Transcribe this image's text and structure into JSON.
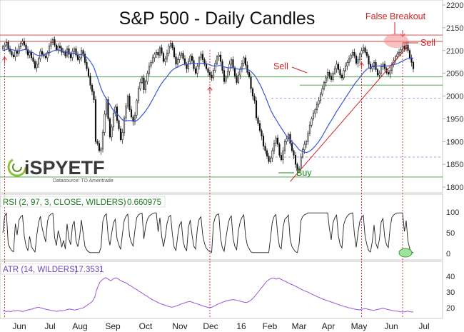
{
  "chart_data": {
    "type": "candlestick",
    "title": "S&P 500 - Daily Candles",
    "x_ticks": [
      "Jun",
      "Jul",
      "Aug",
      "Sep",
      "Oct",
      "Nov",
      "Dec",
      "16",
      "Feb",
      "Mar",
      "Apr",
      "May",
      "Jun",
      "Jul"
    ],
    "price_axis": {
      "range": [
        1800,
        2200
      ],
      "ticks": [
        1800,
        1850,
        1900,
        1950,
        2000,
        2050,
        2100,
        2150,
        2200
      ]
    },
    "price_series": [
      {
        "name": "close",
        "values": [
          2108,
          2112,
          2118,
          2104,
          2098,
          2090,
          2086,
          2100,
          2094,
          2108,
          2116,
          2120,
          2112,
          2102,
          2090,
          2096,
          2084,
          2076,
          2062,
          2070,
          2082,
          2098,
          2092,
          2088,
          2084,
          2096,
          2110,
          2118,
          2124,
          2112,
          2102,
          2110,
          2106,
          2096,
          2098,
          2088,
          2104,
          2092,
          2084,
          2098,
          2104,
          2090,
          2080,
          2084,
          2100,
          2092,
          2074,
          2060,
          2044,
          2024,
          2010,
          1992,
          1900,
          1896,
          1880,
          1884,
          1920,
          1960,
          1992,
          1950,
          1910,
          1932,
          1962,
          1976,
          1946,
          1928,
          1904,
          1920,
          1952,
          1978,
          2000,
          1970,
          1954,
          1944,
          1958,
          1990,
          2016,
          2030,
          2040,
          2014,
          2032,
          2050,
          2066,
          2074,
          2084,
          2092,
          2096,
          2090,
          2106,
          2094,
          2076,
          2082,
          2094,
          2110,
          2116,
          2106,
          2086,
          2070,
          2080,
          2090,
          2094,
          2082,
          2070,
          2060,
          2076,
          2088,
          2078,
          2060,
          2050,
          2066,
          2084,
          2092,
          2080,
          2070,
          2060,
          2052,
          2046,
          2040,
          2056,
          2072,
          2086,
          2090,
          2076,
          2056,
          2032,
          2042,
          2054,
          2070,
          2080,
          2062,
          2044,
          2030,
          2046,
          2060,
          2072,
          2084,
          2068,
          2052,
          2042,
          2016,
          2000,
          1990,
          1952,
          1940,
          1924,
          1912,
          1890,
          1880,
          1868,
          1856,
          1864,
          1880,
          1896,
          1908,
          1894,
          1870,
          1860,
          1880,
          1900,
          1906,
          1916,
          1896,
          1880,
          1870,
          1850,
          1836,
          1840,
          1866,
          1882,
          1894,
          1900,
          1918,
          1936,
          1950,
          1962,
          1970,
          1982,
          1990,
          2004,
          2016,
          2030,
          2040,
          2052,
          2044,
          2036,
          2050,
          2060,
          2070,
          2058,
          2046,
          2040,
          2056,
          2066,
          2074,
          2082,
          2090,
          2096,
          2088,
          2072,
          2080,
          2092,
          2100,
          2106,
          2096,
          2088,
          2070,
          2060,
          2064,
          2074,
          2058,
          2046,
          2050,
          2064,
          2070,
          2060,
          2052,
          2048,
          2056,
          2070,
          2078,
          2086,
          2092,
          2096,
          2102,
          2110,
          2104,
          2112,
          2100,
          2084,
          2074,
          2060
        ]
      },
      {
        "name": "moving average",
        "values": [
          2100,
          2101,
          2102,
          2103,
          2103,
          2102,
          2101,
          2100,
          2099,
          2099,
          2100,
          2101,
          2102,
          2102,
          2101,
          2099,
          2097,
          2095,
          2092,
          2090,
          2089,
          2089,
          2090,
          2091,
          2092,
          2093,
          2095,
          2097,
          2099,
          2100,
          2101,
          2101,
          2100,
          2099,
          2098,
          2097,
          2096,
          2095,
          2094,
          2094,
          2094,
          2093,
          2092,
          2091,
          2091,
          2090,
          2088,
          2085,
          2081,
          2076,
          2070,
          2063,
          2052,
          2041,
          2029,
          2017,
          2008,
          2000,
          1994,
          1988,
          1981,
          1974,
          1969,
          1965,
          1961,
          1957,
          1952,
          1948,
          1946,
          1945,
          1946,
          1946,
          1946,
          1945,
          1945,
          1946,
          1949,
          1953,
          1958,
          1962,
          1967,
          1973,
          1979,
          1986,
          1993,
          2000,
          2008,
          2015,
          2022,
          2028,
          2033,
          2038,
          2043,
          2048,
          2053,
          2057,
          2060,
          2062,
          2064,
          2066,
          2068,
          2069,
          2070,
          2070,
          2071,
          2072,
          2072,
          2072,
          2071,
          2071,
          2071,
          2072,
          2072,
          2072,
          2071,
          2070,
          2069,
          2067,
          2066,
          2066,
          2066,
          2067,
          2067,
          2066,
          2064,
          2063,
          2062,
          2062,
          2062,
          2062,
          2061,
          2060,
          2059,
          2059,
          2059,
          2060,
          2060,
          2059,
          2057,
          2054,
          2050,
          2046,
          2040,
          2033,
          2026,
          2018,
          2009,
          2000,
          1990,
          1980,
          1970,
          1962,
          1955,
          1949,
          1942,
          1936,
          1930,
          1924,
          1918,
          1912,
          1908,
          1904,
          1900,
          1896,
          1892,
          1887,
          1882,
          1880,
          1878,
          1877,
          1876,
          1877,
          1879,
          1882,
          1886,
          1890,
          1895,
          1900,
          1906,
          1912,
          1919,
          1926,
          1933,
          1940,
          1946,
          1952,
          1959,
          1966,
          1972,
          1978,
          1984,
          1990,
          1996,
          2002,
          2008,
          2014,
          2020,
          2026,
          2031,
          2036,
          2041,
          2046,
          2051,
          2055,
          2059,
          2061,
          2063,
          2065,
          2066,
          2066,
          2066,
          2066,
          2066,
          2066,
          2066,
          2066,
          2066,
          2067,
          2068,
          2069,
          2070,
          2071,
          2073,
          2075,
          2077,
          2079,
          2081,
          2082,
          2083,
          2084,
          2083
        ]
      }
    ],
    "horizontal_levels": [
      {
        "value": 2134,
        "color": "#c94040",
        "style": "solid"
      },
      {
        "value": 2120,
        "color": "#c94040",
        "style": "solid"
      },
      {
        "value": 2042,
        "color": "#3b9a3b",
        "style": "solid"
      },
      {
        "value": 2024,
        "color": "#3b9a3b",
        "style": "solid"
      },
      {
        "value": 1995,
        "color": "#9a8ce0",
        "style": "dashed"
      },
      {
        "value": 1866,
        "color": "#9a8ce0",
        "style": "dashed"
      },
      {
        "value": 1822,
        "color": "#3b9a3b",
        "style": "solid"
      }
    ],
    "trendline": {
      "from": {
        "index": 161,
        "value": 1812
      },
      "to": {
        "index": 227,
        "value": 2110
      },
      "color": "#d42020"
    },
    "markers": [
      {
        "index": 1,
        "type": "up-arrow"
      },
      {
        "index": 116,
        "type": "up-arrow"
      },
      {
        "index": 201,
        "type": "up-arrow"
      },
      {
        "index": 224,
        "type": "down-arrow"
      }
    ],
    "vertical_lines": [
      1,
      116,
      201,
      224
    ],
    "annotations": [
      {
        "text": "False Breakout",
        "color": "#d42020"
      },
      {
        "text": "Sell",
        "color": "#d42020"
      },
      {
        "text": "Sell",
        "color": "#d42020"
      },
      {
        "text": "Buy",
        "color": "#1a8a1a"
      }
    ],
    "rsi_panel": {
      "label": "RSI (2, 97, 3, CLOSE, WILDERS)",
      "value": "0.660975",
      "label_color": "#1a7a1a",
      "ticks": [
        0,
        50,
        100
      ],
      "range": [
        0,
        100
      ],
      "line_color": "#222222"
    },
    "atr_panel": {
      "label": "ATR (14, WILDERS)",
      "value": "17.3531",
      "label_color": "#6a45c2",
      "ticks": [
        20,
        30,
        40
      ],
      "range": [
        15,
        45
      ],
      "line_color": "#9955dd",
      "values": [
        18.2,
        17.9,
        17.6,
        17.8,
        17.5,
        17.7,
        18.1,
        17.9,
        18.3,
        18.0,
        17.8,
        17.6,
        17.9,
        18.4,
        18.6,
        18.9,
        19.1,
        19.5,
        19.8,
        20.1,
        20.3,
        19.9,
        19.5,
        19.3,
        19.0,
        18.8,
        18.5,
        18.3,
        18.1,
        17.9,
        17.7,
        17.9,
        18.2,
        18.0,
        18.3,
        18.6,
        18.9,
        19.2,
        19.0,
        18.7,
        18.5,
        18.8,
        19.1,
        19.4,
        19.7,
        20.2,
        21.0,
        21.8,
        22.5,
        23.3,
        24.5,
        26.5,
        31,
        34,
        36.5,
        37.5,
        38.4,
        39.2,
        38.6,
        37.8,
        37.2,
        38.0,
        38.8,
        39.0,
        38.4,
        37.6,
        37.0,
        36.4,
        36.0,
        35.4,
        34.6,
        34.0,
        33.2,
        32.4,
        31.8,
        31.0,
        30.2,
        29.6,
        28.8,
        28.0,
        27.4,
        26.6,
        25.8,
        25.2,
        24.6,
        24.0,
        23.4,
        22.8,
        22.4,
        22.0,
        21.6,
        21.2,
        20.8,
        20.5,
        20.3,
        20.6,
        21.0,
        21.4,
        21.8,
        22.3,
        22.7,
        23.1,
        23.5,
        23.8,
        24.0,
        23.6,
        23.2,
        22.8,
        22.4,
        22.0,
        21.6,
        21.2,
        20.8,
        20.5,
        20.2,
        20.0,
        20.3,
        20.8,
        21.4,
        22.0,
        22.6,
        23.0,
        23.5,
        23.9,
        24.3,
        24.6,
        24.8,
        25.0,
        25.2,
        25.0,
        24.7,
        24.4,
        24.1,
        23.8,
        23.5,
        23.3,
        23.6,
        24.2,
        25.0,
        26.0,
        27.4,
        28.8,
        30.2,
        31.8,
        33.2,
        34.6,
        36.0,
        37.2,
        38.0,
        38.6,
        39.0,
        38.6,
        38.2,
        38.8,
        38.4,
        37.8,
        37.2,
        36.8,
        36.2,
        35.6,
        35.0,
        34.6,
        34.0,
        33.4,
        32.8,
        32.2,
        31.6,
        31.0,
        30.6,
        30.2,
        29.6,
        29.0,
        28.4,
        28.0,
        27.4,
        26.8,
        26.4,
        25.8,
        25.4,
        25.0,
        24.6,
        24.2,
        23.8,
        23.4,
        23.0,
        22.6,
        22.2,
        21.8,
        21.4,
        21.0,
        20.6,
        20.4,
        20.0,
        19.8,
        19.5,
        19.2,
        19.0,
        18.8,
        18.6,
        18.9,
        19.2,
        19.5,
        19.3,
        19.0,
        18.7,
        18.5,
        18.4,
        18.6,
        18.9,
        19.1,
        19.4,
        19.6,
        19.4,
        19.1,
        18.8,
        18.6,
        18.3,
        18.1,
        17.9,
        17.8,
        17.6,
        17.4,
        17.3,
        17.4,
        17.6,
        17.8,
        17.5,
        17.3,
        17.3
      ]
    },
    "watermark": {
      "text": "iSPYETF",
      "sub": "Datasource: TD Ameritrade"
    }
  }
}
